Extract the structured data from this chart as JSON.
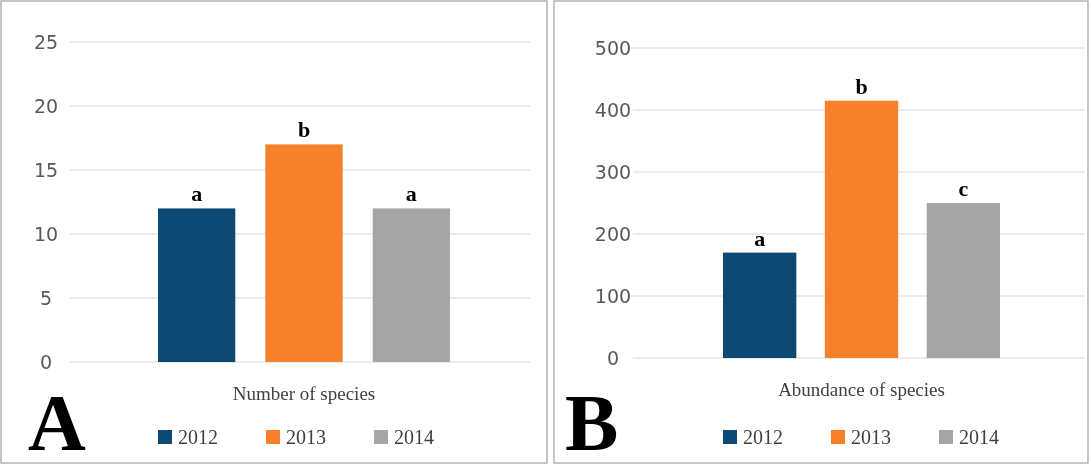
{
  "chart_data": [
    {
      "type": "bar",
      "categories": [
        "Number of species"
      ],
      "ylim": [
        0,
        25
      ],
      "yticks": [
        0,
        5,
        10,
        15,
        20,
        25
      ],
      "grid": "y",
      "legend": "bottom",
      "annotations": [
        "A"
      ],
      "series": [
        {
          "name": "2012",
          "color": "#0c4a73",
          "values": [
            12
          ],
          "value_labels": [
            "a"
          ]
        },
        {
          "name": "2013",
          "color": "#f7802a",
          "values": [
            17
          ],
          "value_labels": [
            "b"
          ]
        },
        {
          "name": "2014",
          "color": "#a5a5a5",
          "values": [
            12
          ],
          "value_labels": [
            "a"
          ]
        }
      ]
    },
    {
      "type": "bar",
      "categories": [
        "Abundance of species"
      ],
      "ylim": [
        0,
        500
      ],
      "yticks": [
        0,
        100,
        200,
        300,
        400,
        500
      ],
      "grid": "y",
      "legend": "bottom",
      "annotations": [
        "B"
      ],
      "series": [
        {
          "name": "2012",
          "color": "#0c4a73",
          "values": [
            170
          ],
          "value_labels": [
            "a"
          ]
        },
        {
          "name": "2013",
          "color": "#f7802a",
          "values": [
            415
          ],
          "value_labels": [
            "b"
          ]
        },
        {
          "name": "2014",
          "color": "#a5a5a5",
          "values": [
            250
          ],
          "value_labels": [
            "c"
          ]
        }
      ]
    }
  ]
}
